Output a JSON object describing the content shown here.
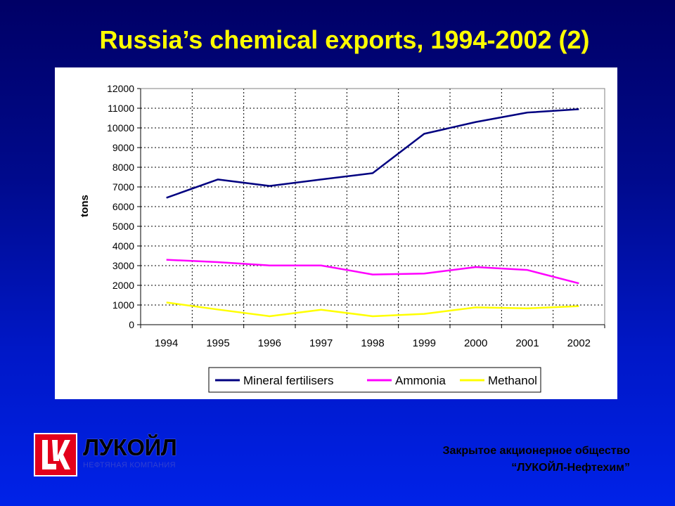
{
  "slide": {
    "title": "Russia’s chemical exports, 1994-2002 (2)"
  },
  "colors": {
    "title": "#ffff00",
    "background_top": "#000066",
    "background_bottom": "#0022e8",
    "mineral_fertilisers": "#000080",
    "ammonia": "#ff00ff",
    "methanol": "#ffff00",
    "logo_red": "#e3001b"
  },
  "chart_data": {
    "type": "line",
    "title": "",
    "xlabel": "",
    "ylabel": "tons",
    "categories": [
      "1994",
      "1995",
      "1996",
      "1997",
      "1998",
      "1999",
      "2000",
      "2001",
      "2002"
    ],
    "ylim": [
      0,
      12000
    ],
    "yticks": [
      0,
      1000,
      2000,
      3000,
      4000,
      5000,
      6000,
      7000,
      8000,
      9000,
      10000,
      11000,
      12000
    ],
    "grid": true,
    "legend": "bottom",
    "series": [
      {
        "name": "Mineral fertilisers",
        "color": "#000080",
        "values": [
          6450,
          7380,
          7050,
          7380,
          7700,
          9700,
          10300,
          10780,
          10950
        ]
      },
      {
        "name": "Ammonia",
        "color": "#ff00ff",
        "values": [
          3300,
          3180,
          3010,
          3010,
          2550,
          2600,
          2930,
          2780,
          2100
        ]
      },
      {
        "name": "Methanol",
        "color": "#ffff00",
        "values": [
          1130,
          770,
          430,
          760,
          430,
          550,
          880,
          830,
          940
        ]
      }
    ]
  },
  "logo": {
    "name": "ЛУКОЙЛ",
    "subtitle": "НЕФТЯНАЯ КОМПАНИЯ",
    "icon": "lukoil-logo-icon"
  },
  "company": {
    "line1": "Закрытое акционерное общество",
    "line2": "“ЛУКОЙЛ-Нефтехим”"
  }
}
